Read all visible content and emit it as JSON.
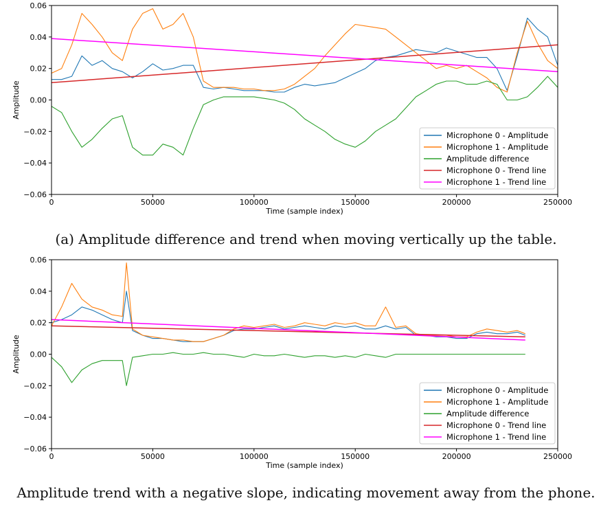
{
  "captions": {
    "top": "(a) Amplitude difference and trend when moving vertically up the table.",
    "bottom": "Amplitude trend with a negative slope, indicating movement away from the phone."
  },
  "colors": {
    "mic0": "#1f77b4",
    "mic1": "#ff7f0e",
    "diff": "#2ca02c",
    "trend0": "#d62728",
    "trend1": "#ff00ff"
  },
  "chart_data": [
    {
      "type": "line",
      "xlabel": "Time (sample index)",
      "ylabel": "Amplitude",
      "xlim": [
        0,
        250000
      ],
      "ylim": [
        -0.06,
        0.06
      ],
      "xticks": [
        0,
        50000,
        100000,
        150000,
        200000,
        250000
      ],
      "yticks": [
        -0.06,
        -0.04,
        -0.02,
        0.0,
        0.02,
        0.04,
        0.06
      ],
      "xtick_labels": [
        "0",
        "50000",
        "100000",
        "150000",
        "200000",
        "250000"
      ],
      "ytick_labels": [
        "−0.06",
        "−0.04",
        "−0.02",
        "0.00",
        "0.02",
        "0.04",
        "0.06"
      ],
      "legend_position": "lower-right",
      "series": [
        {
          "name": "Microphone 0 - Amplitude",
          "color": "#1f77b4",
          "x": [
            0,
            5000,
            10000,
            15000,
            20000,
            25000,
            30000,
            35000,
            40000,
            45000,
            50000,
            55000,
            60000,
            65000,
            70000,
            75000,
            80000,
            85000,
            90000,
            95000,
            100000,
            105000,
            110000,
            115000,
            120000,
            125000,
            130000,
            135000,
            140000,
            145000,
            150000,
            155000,
            160000,
            165000,
            170000,
            175000,
            180000,
            185000,
            190000,
            195000,
            200000,
            205000,
            210000,
            215000,
            220000,
            225000,
            230000,
            235000,
            240000,
            245000,
            250000
          ],
          "y": [
            0.013,
            0.013,
            0.015,
            0.028,
            0.022,
            0.025,
            0.02,
            0.018,
            0.014,
            0.018,
            0.023,
            0.019,
            0.02,
            0.022,
            0.022,
            0.008,
            0.007,
            0.008,
            0.007,
            0.006,
            0.006,
            0.006,
            0.005,
            0.005,
            0.008,
            0.01,
            0.009,
            0.01,
            0.011,
            0.014,
            0.017,
            0.02,
            0.025,
            0.027,
            0.028,
            0.03,
            0.032,
            0.031,
            0.03,
            0.033,
            0.031,
            0.029,
            0.027,
            0.027,
            0.02,
            0.006,
            0.028,
            0.052,
            0.045,
            0.04,
            0.022
          ]
        },
        {
          "name": "Microphone 1 - Amplitude",
          "color": "#ff7f0e",
          "x": [
            0,
            5000,
            10000,
            15000,
            20000,
            25000,
            30000,
            35000,
            40000,
            45000,
            50000,
            55000,
            60000,
            65000,
            70000,
            75000,
            80000,
            85000,
            90000,
            95000,
            100000,
            105000,
            110000,
            115000,
            120000,
            125000,
            130000,
            135000,
            140000,
            145000,
            150000,
            155000,
            160000,
            165000,
            170000,
            175000,
            180000,
            185000,
            190000,
            195000,
            200000,
            205000,
            210000,
            215000,
            220000,
            225000,
            230000,
            235000,
            240000,
            245000,
            250000
          ],
          "y": [
            0.017,
            0.02,
            0.035,
            0.055,
            0.048,
            0.04,
            0.03,
            0.025,
            0.045,
            0.055,
            0.058,
            0.045,
            0.048,
            0.055,
            0.04,
            0.012,
            0.008,
            0.008,
            0.008,
            0.007,
            0.007,
            0.006,
            0.006,
            0.007,
            0.01,
            0.015,
            0.02,
            0.028,
            0.035,
            0.042,
            0.048,
            0.047,
            0.046,
            0.045,
            0.04,
            0.035,
            0.03,
            0.025,
            0.02,
            0.022,
            0.02,
            0.022,
            0.018,
            0.014,
            0.008,
            0.005,
            0.03,
            0.05,
            0.036,
            0.025,
            0.02
          ]
        },
        {
          "name": "Amplitude difference",
          "color": "#2ca02c",
          "x": [
            0,
            5000,
            10000,
            15000,
            20000,
            25000,
            30000,
            35000,
            40000,
            45000,
            50000,
            55000,
            60000,
            65000,
            70000,
            75000,
            80000,
            85000,
            90000,
            95000,
            100000,
            105000,
            110000,
            115000,
            120000,
            125000,
            130000,
            135000,
            140000,
            145000,
            150000,
            155000,
            160000,
            165000,
            170000,
            175000,
            180000,
            185000,
            190000,
            195000,
            200000,
            205000,
            210000,
            215000,
            220000,
            225000,
            230000,
            235000,
            240000,
            245000,
            250000
          ],
          "y": [
            -0.004,
            -0.008,
            -0.02,
            -0.03,
            -0.025,
            -0.018,
            -0.012,
            -0.01,
            -0.03,
            -0.035,
            -0.035,
            -0.028,
            -0.03,
            -0.035,
            -0.018,
            -0.003,
            0.0,
            0.002,
            0.002,
            0.002,
            0.002,
            0.001,
            0.0,
            -0.002,
            -0.006,
            -0.012,
            -0.016,
            -0.02,
            -0.025,
            -0.028,
            -0.03,
            -0.026,
            -0.02,
            -0.016,
            -0.012,
            -0.005,
            0.002,
            0.006,
            0.01,
            0.012,
            0.012,
            0.01,
            0.01,
            0.012,
            0.01,
            0.0,
            0.0,
            0.002,
            0.008,
            0.015,
            0.008
          ]
        },
        {
          "name": "Microphone 0 - Trend line",
          "color": "#d62728",
          "x": [
            0,
            250000
          ],
          "y": [
            0.011,
            0.035
          ]
        },
        {
          "name": "Microphone 1 - Trend line",
          "color": "#ff00ff",
          "x": [
            0,
            250000
          ],
          "y": [
            0.039,
            0.018
          ]
        }
      ]
    },
    {
      "type": "line",
      "xlabel": "Time (sample index)",
      "ylabel": "Amplitude",
      "xlim": [
        0,
        250000
      ],
      "ylim": [
        -0.06,
        0.06
      ],
      "xticks": [
        0,
        50000,
        100000,
        150000,
        200000,
        250000
      ],
      "yticks": [
        -0.06,
        -0.04,
        -0.02,
        0.0,
        0.02,
        0.04,
        0.06
      ],
      "xtick_labels": [
        "0",
        "50000",
        "100000",
        "150000",
        "200000",
        "250000"
      ],
      "ytick_labels": [
        "−0.06",
        "−0.04",
        "−0.02",
        "0.00",
        "0.02",
        "0.04",
        "0.06"
      ],
      "legend_position": "lower-right",
      "series": [
        {
          "name": "Microphone 0 - Amplitude",
          "color": "#1f77b4",
          "x": [
            0,
            5000,
            10000,
            15000,
            20000,
            25000,
            30000,
            35000,
            37000,
            40000,
            45000,
            50000,
            55000,
            60000,
            65000,
            70000,
            75000,
            80000,
            85000,
            90000,
            95000,
            100000,
            105000,
            110000,
            115000,
            120000,
            125000,
            130000,
            135000,
            140000,
            145000,
            150000,
            155000,
            160000,
            165000,
            170000,
            175000,
            180000,
            185000,
            190000,
            195000,
            200000,
            205000,
            210000,
            215000,
            220000,
            225000,
            230000,
            234000
          ],
          "y": [
            0.02,
            0.022,
            0.025,
            0.03,
            0.028,
            0.025,
            0.022,
            0.02,
            0.04,
            0.015,
            0.012,
            0.01,
            0.01,
            0.009,
            0.008,
            0.008,
            0.008,
            0.01,
            0.012,
            0.015,
            0.016,
            0.016,
            0.017,
            0.018,
            0.016,
            0.017,
            0.018,
            0.017,
            0.016,
            0.018,
            0.017,
            0.018,
            0.016,
            0.016,
            0.018,
            0.016,
            0.017,
            0.012,
            0.012,
            0.011,
            0.011,
            0.01,
            0.01,
            0.013,
            0.014,
            0.013,
            0.013,
            0.014,
            0.012
          ]
        },
        {
          "name": "Microphone 1 - Amplitude",
          "color": "#ff7f0e",
          "x": [
            0,
            5000,
            10000,
            15000,
            20000,
            25000,
            30000,
            35000,
            37000,
            40000,
            45000,
            50000,
            55000,
            60000,
            65000,
            70000,
            75000,
            80000,
            85000,
            90000,
            95000,
            100000,
            105000,
            110000,
            115000,
            120000,
            125000,
            130000,
            135000,
            140000,
            145000,
            150000,
            155000,
            160000,
            165000,
            170000,
            175000,
            180000,
            185000,
            190000,
            195000,
            200000,
            205000,
            210000,
            215000,
            220000,
            225000,
            230000,
            234000
          ],
          "y": [
            0.018,
            0.03,
            0.045,
            0.035,
            0.03,
            0.028,
            0.025,
            0.024,
            0.058,
            0.016,
            0.012,
            0.011,
            0.01,
            0.009,
            0.009,
            0.008,
            0.008,
            0.01,
            0.012,
            0.016,
            0.018,
            0.017,
            0.018,
            0.019,
            0.017,
            0.018,
            0.02,
            0.019,
            0.018,
            0.02,
            0.019,
            0.02,
            0.018,
            0.018,
            0.03,
            0.017,
            0.018,
            0.013,
            0.012,
            0.012,
            0.012,
            0.011,
            0.011,
            0.014,
            0.016,
            0.015,
            0.014,
            0.015,
            0.013
          ]
        },
        {
          "name": "Amplitude difference",
          "color": "#2ca02c",
          "x": [
            0,
            5000,
            10000,
            15000,
            20000,
            25000,
            30000,
            35000,
            37000,
            40000,
            45000,
            50000,
            55000,
            60000,
            65000,
            70000,
            75000,
            80000,
            85000,
            90000,
            95000,
            100000,
            105000,
            110000,
            115000,
            120000,
            125000,
            130000,
            135000,
            140000,
            145000,
            150000,
            155000,
            160000,
            165000,
            170000,
            175000,
            180000,
            185000,
            190000,
            195000,
            200000,
            205000,
            210000,
            215000,
            220000,
            225000,
            230000,
            234000
          ],
          "y": [
            -0.002,
            -0.008,
            -0.018,
            -0.01,
            -0.006,
            -0.004,
            -0.004,
            -0.004,
            -0.02,
            -0.002,
            -0.001,
            0.0,
            0.0,
            0.001,
            0.0,
            0.0,
            0.001,
            0.0,
            0.0,
            -0.001,
            -0.002,
            0.0,
            -0.001,
            -0.001,
            0.0,
            -0.001,
            -0.002,
            -0.001,
            -0.001,
            -0.002,
            -0.001,
            -0.002,
            0.0,
            -0.001,
            -0.002,
            0.0,
            0.0,
            0.0,
            0.0,
            0.0,
            0.0,
            0.0,
            0.0,
            0.0,
            0.0,
            0.0,
            0.0,
            0.0,
            0.0
          ]
        },
        {
          "name": "Microphone 0 - Trend line",
          "color": "#d62728",
          "x": [
            0,
            234000
          ],
          "y": [
            0.018,
            0.011
          ]
        },
        {
          "name": "Microphone 1 - Trend line",
          "color": "#ff00ff",
          "x": [
            0,
            234000
          ],
          "y": [
            0.022,
            0.009
          ]
        }
      ]
    }
  ]
}
